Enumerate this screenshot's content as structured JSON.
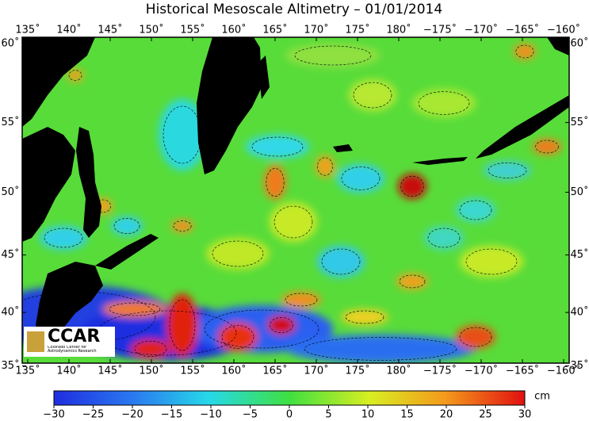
{
  "title": "Historical Mesoscale Altimetry – 01/01/2014",
  "map": {
    "lon_ticks": [
      {
        "value": 135,
        "label": "135˚"
      },
      {
        "value": 140,
        "label": "140˚"
      },
      {
        "value": 145,
        "label": "145˚"
      },
      {
        "value": 150,
        "label": "150˚"
      },
      {
        "value": 155,
        "label": "155˚"
      },
      {
        "value": 160,
        "label": "160˚"
      },
      {
        "value": 165,
        "label": "165˚"
      },
      {
        "value": 170,
        "label": "170˚"
      },
      {
        "value": 175,
        "label": "175˚"
      },
      {
        "value": 180,
        "label": "180˚"
      },
      {
        "value": -175,
        "label": "−175˚"
      },
      {
        "value": -170,
        "label": "−170˚"
      },
      {
        "value": -165,
        "label": "−165˚"
      },
      {
        "value": -160,
        "label": "−160˚"
      }
    ],
    "lat_ticks": [
      {
        "value": 35,
        "label": "35˚"
      },
      {
        "value": 40,
        "label": "40˚"
      },
      {
        "value": 45,
        "label": "45˚"
      },
      {
        "value": 50,
        "label": "50˚"
      },
      {
        "value": 55,
        "label": "55˚"
      },
      {
        "value": 60,
        "label": "60˚"
      }
    ]
  },
  "colorbar": {
    "lim": [
      -30,
      30
    ],
    "ticks": [
      {
        "value": -30,
        "label": "−30"
      },
      {
        "value": -25,
        "label": "−25"
      },
      {
        "value": -20,
        "label": "−20"
      },
      {
        "value": -15,
        "label": "−15"
      },
      {
        "value": -10,
        "label": "−10"
      },
      {
        "value": -5,
        "label": "−5"
      },
      0,
      5,
      10,
      15,
      20,
      25,
      30
    ],
    "unit": "cm"
  },
  "logo": {
    "name": "CCAR",
    "subtitle": "Colorado Center for Astrodynamics Research"
  }
}
